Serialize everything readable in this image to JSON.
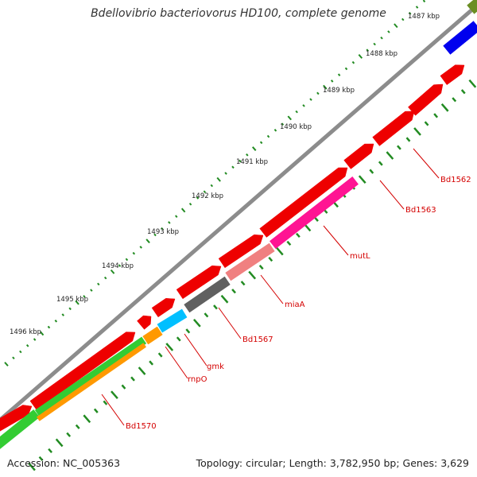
{
  "title": "Bdellovibrio bacteriovorus HD100, complete genome",
  "footer": {
    "accession": "Accession: NC_005363",
    "topology": "Topology: circular; Length: 3,782,950 bp; Genes: 3,629"
  },
  "scale_labels": [
    "1487 kbp",
    "1488 kbp",
    "1489 kbp",
    "1490 kbp",
    "1491 kbp",
    "1492 kbp",
    "1493 kbp",
    "1494 kbp",
    "1495 kbp",
    "1496 kbp"
  ],
  "gene_labels": [
    "Bd1562",
    "Bd1563",
    "mutL",
    "miaA",
    "Bd1567",
    "gmk",
    "rnpO",
    "Bd1570"
  ],
  "colors": {
    "backbone": "#808080",
    "forward_gene": "#ee0000",
    "scale_ticks": "#228b22",
    "labels": "#d40000",
    "blue_gene": "#0000ee",
    "olive_gene": "#6b8e23",
    "pink_gene": "#ff1493",
    "salmon_gene": "#f08080",
    "gray_gene": "#606060",
    "cyan_gene": "#00bfff",
    "orange_gene": "#ff9900",
    "green_gene": "#33cc33"
  }
}
